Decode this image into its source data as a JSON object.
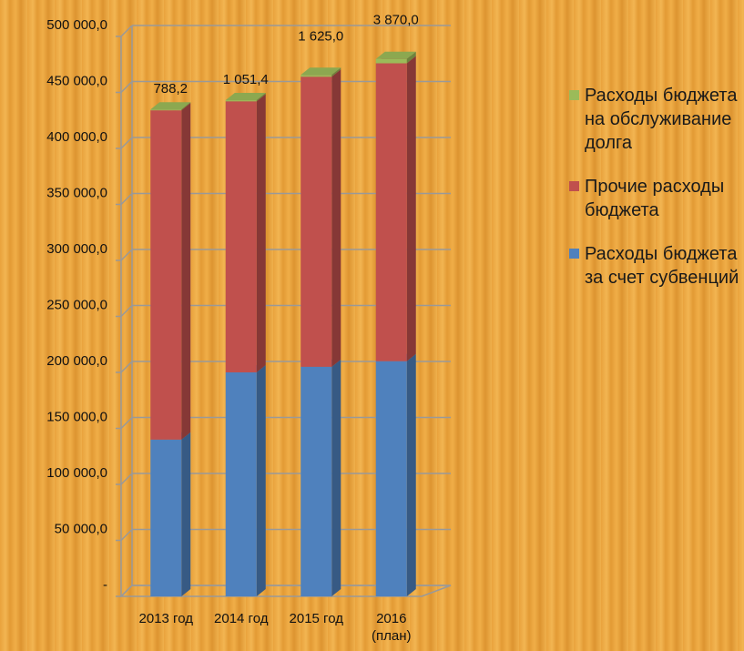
{
  "chart_data": {
    "type": "bar",
    "stacked": true,
    "categories": [
      "2013 год",
      "2014 год",
      "2015 год",
      "2016 (план)"
    ],
    "series": [
      {
        "name": "Расходы бюджета за счет субвенций",
        "color": "#4f81bd",
        "values": [
          140000,
          200000,
          205000,
          210000
        ]
      },
      {
        "name": "Прочие расходы бюджета",
        "color": "#c0504d",
        "values": [
          294000,
          242000,
          259000,
          266000
        ]
      },
      {
        "name": "Расходы бюджета на обслуживание долга",
        "color": "#9bbb59",
        "values": [
          788.2,
          1051.4,
          1625.0,
          3870.0
        ],
        "value_labels": [
          "788,2",
          "1 051,4",
          "1 625,0",
          "3 870,0"
        ]
      }
    ],
    "ylim": [
      0,
      500000
    ],
    "yticks": [
      {
        "value": 0,
        "label": "-"
      },
      {
        "value": 50000,
        "label": "50 000,0"
      },
      {
        "value": 100000,
        "label": "100 000,0"
      },
      {
        "value": 150000,
        "label": "150 000,0"
      },
      {
        "value": 200000,
        "label": "200 000,0"
      },
      {
        "value": 250000,
        "label": "250 000,0"
      },
      {
        "value": 300000,
        "label": "300 000,0"
      },
      {
        "value": 350000,
        "label": "350 000,0"
      },
      {
        "value": 400000,
        "label": "400 000,0"
      },
      {
        "value": 450000,
        "label": "450 000,0"
      },
      {
        "value": 500000,
        "label": "500 000,0"
      }
    ],
    "grid": true,
    "legend": "right"
  }
}
